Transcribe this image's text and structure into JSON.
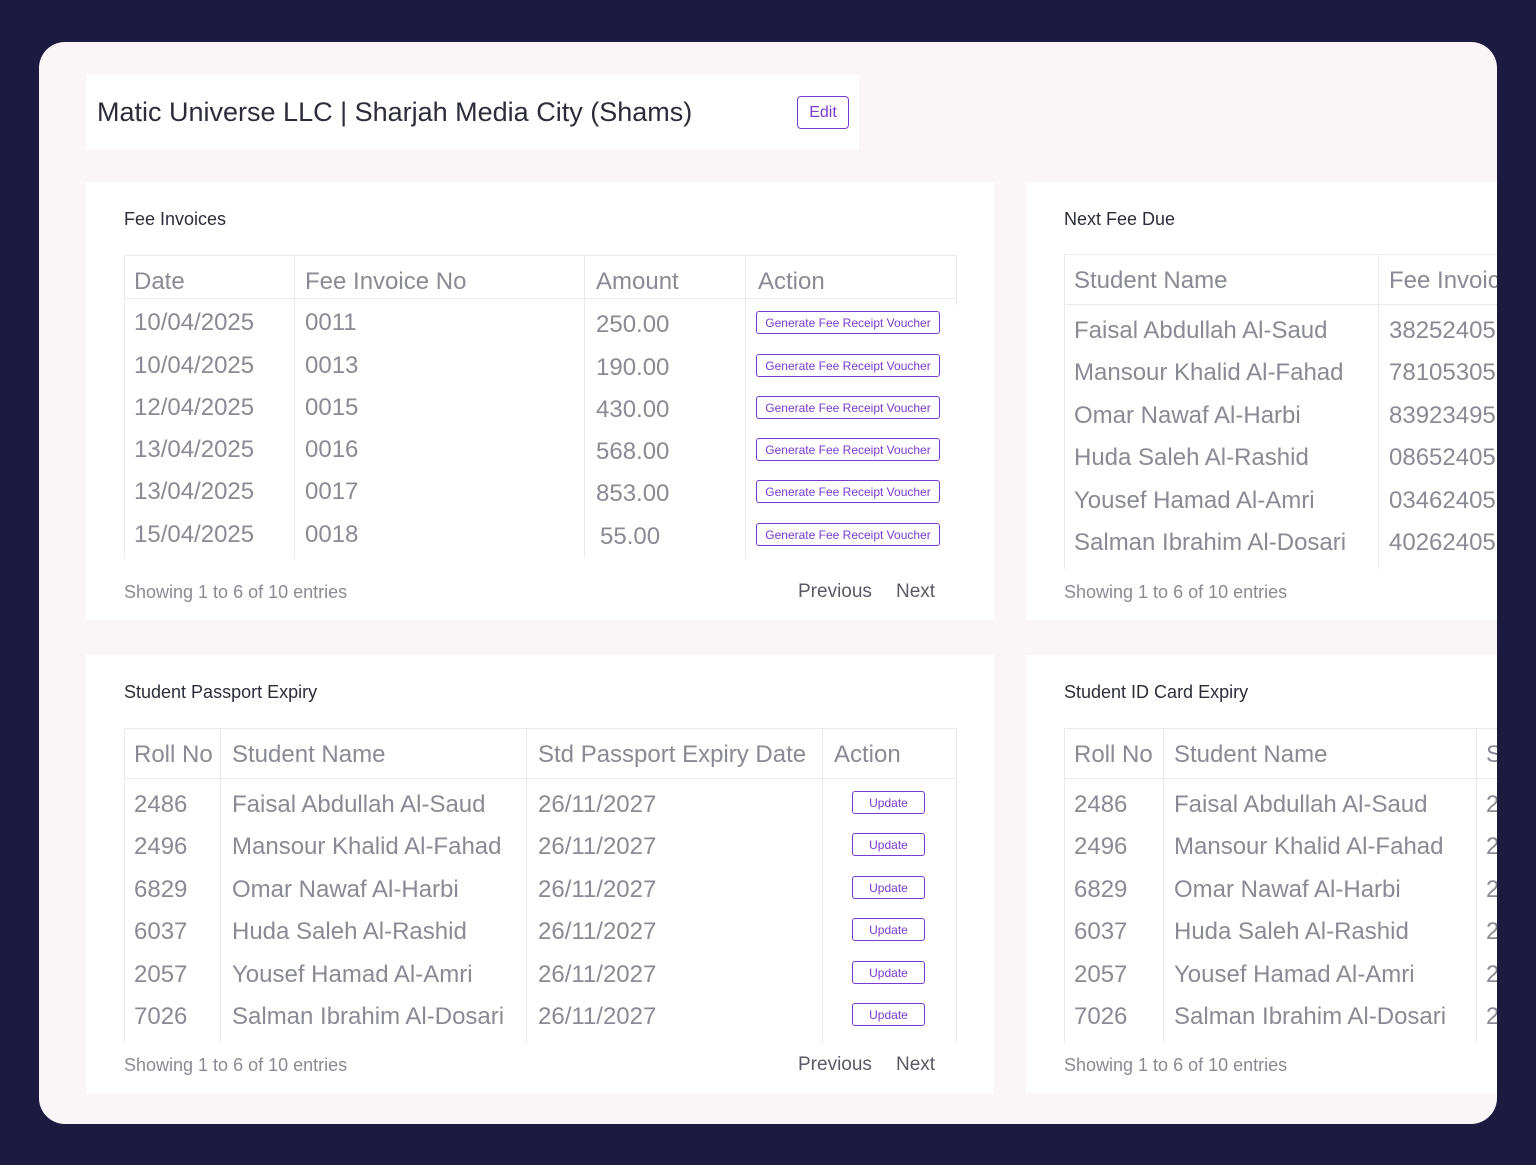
{
  "header": {
    "title": "Matic Universe LLC | Sharjah Media City (Shams)",
    "toggle_on": true,
    "edit_label": "Edit",
    "accent_color": "#7a3ad1"
  },
  "fee_invoices": {
    "title": "Fee Invoices",
    "columns": [
      "Date",
      "Fee Invoice No",
      "Amount",
      "Action"
    ],
    "rows": [
      {
        "date": "10/04/2025",
        "invoice_no": "0011",
        "amount": "250.00",
        "action": "Generate Fee Receipt Voucher"
      },
      {
        "date": "10/04/2025",
        "invoice_no": "0013",
        "amount": "190.00",
        "action": "Generate Fee Receipt Voucher"
      },
      {
        "date": "12/04/2025",
        "invoice_no": "0015",
        "amount": "430.00",
        "action": "Generate Fee Receipt Voucher"
      },
      {
        "date": "13/04/2025",
        "invoice_no": "0016",
        "amount": "568.00",
        "action": "Generate Fee Receipt Voucher"
      },
      {
        "date": "13/04/2025",
        "invoice_no": "0017",
        "amount": "853.00",
        "action": "Generate Fee Receipt Voucher"
      },
      {
        "date": "15/04/2025",
        "invoice_no": "0018",
        "amount": "55.00",
        "action": "Generate Fee Receipt Voucher"
      }
    ],
    "footer": "Showing 1 to 6 of 10 entries",
    "previous": "Previous",
    "next": "Next"
  },
  "next_fee_due": {
    "title": "Next Fee Due",
    "columns": [
      "Student Name",
      "Fee Invoic"
    ],
    "rows": [
      {
        "name": "Faisal Abdullah Al-Saud",
        "fee": "38252405"
      },
      {
        "name": "Mansour Khalid Al-Fahad",
        "fee": "78105305"
      },
      {
        "name": "Omar Nawaf Al-Harbi",
        "fee": "83923495"
      },
      {
        "name": "Huda Saleh Al-Rashid",
        "fee": "08652405"
      },
      {
        "name": "Yousef Hamad Al-Amri",
        "fee": "03462405"
      },
      {
        "name": "Salman Ibrahim Al-Dosari",
        "fee": "40262405"
      }
    ],
    "footer": "Showing 1 to 6 of 10 entries"
  },
  "passport_expiry": {
    "title": "Student Passport Expiry",
    "columns": [
      "Roll No",
      "Student Name",
      "Std Passport Expiry Date",
      "Action"
    ],
    "rows": [
      {
        "roll": "2486",
        "name": "Faisal Abdullah Al-Saud",
        "date": "26/11/2027",
        "action": "Update"
      },
      {
        "roll": "2496",
        "name": "Mansour Khalid Al-Fahad",
        "date": "26/11/2027",
        "action": "Update"
      },
      {
        "roll": "6829",
        "name": "Omar Nawaf Al-Harbi",
        "date": "26/11/2027",
        "action": "Update"
      },
      {
        "roll": "6037",
        "name": "Huda Saleh Al-Rashid",
        "date": "26/11/2027",
        "action": "Update"
      },
      {
        "roll": "2057",
        "name": "Yousef Hamad Al-Amri",
        "date": "26/11/2027",
        "action": "Update"
      },
      {
        "roll": "7026",
        "name": "Salman Ibrahim Al-Dosari",
        "date": "26/11/2027",
        "action": "Update"
      }
    ],
    "footer": "Showing 1 to 6 of 10 entries",
    "previous": "Previous",
    "next": "Next"
  },
  "id_card_expiry": {
    "title": "Student ID Card Expiry",
    "columns": [
      "Roll No",
      "Student Name",
      "S"
    ],
    "rows": [
      {
        "roll": "2486",
        "name": "Faisal Abdullah Al-Saud",
        "date": "2"
      },
      {
        "roll": "2496",
        "name": "Mansour Khalid Al-Fahad",
        "date": "2"
      },
      {
        "roll": "6829",
        "name": "Omar Nawaf Al-Harbi",
        "date": "2"
      },
      {
        "roll": "6037",
        "name": "Huda Saleh Al-Rashid",
        "date": "2"
      },
      {
        "roll": "2057",
        "name": "Yousef Hamad Al-Amri",
        "date": "2"
      },
      {
        "roll": "7026",
        "name": "Salman Ibrahim Al-Dosari",
        "date": "2"
      }
    ],
    "footer": "Showing 1 to 6 of 10 entries"
  }
}
